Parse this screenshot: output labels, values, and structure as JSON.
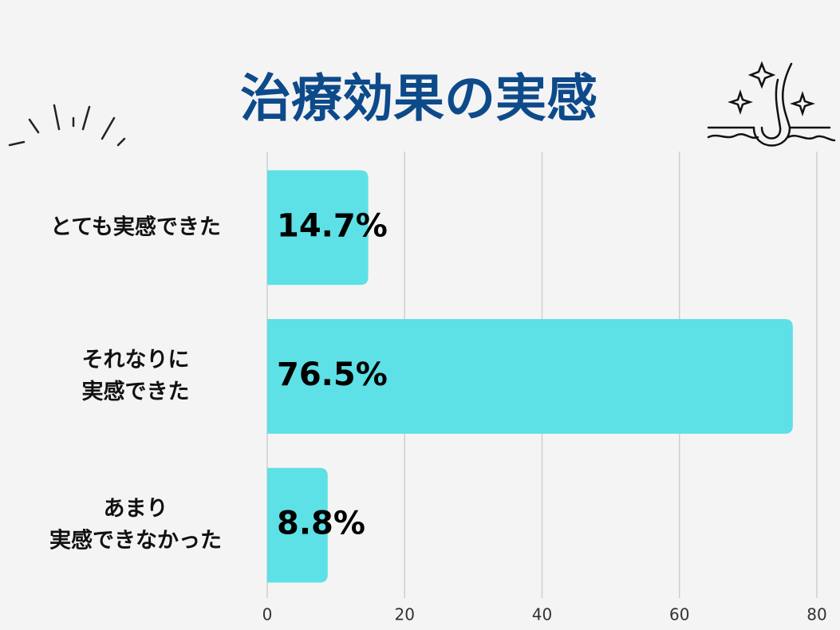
{
  "chart_data": {
    "type": "barh",
    "title": "治療効果の実感",
    "categories": [
      [
        "とても実感できた"
      ],
      [
        "それなりに",
        "実感できた"
      ],
      [
        "あまり",
        "実感できなかった"
      ]
    ],
    "values": [
      14.7,
      76.5,
      8.8
    ],
    "value_labels": [
      "14.7%",
      "76.5%",
      "8.8%"
    ],
    "color": "#5de0e6",
    "xlim": [
      0,
      80
    ],
    "xticks": [
      0,
      20,
      40,
      60,
      80
    ],
    "grid": true
  }
}
